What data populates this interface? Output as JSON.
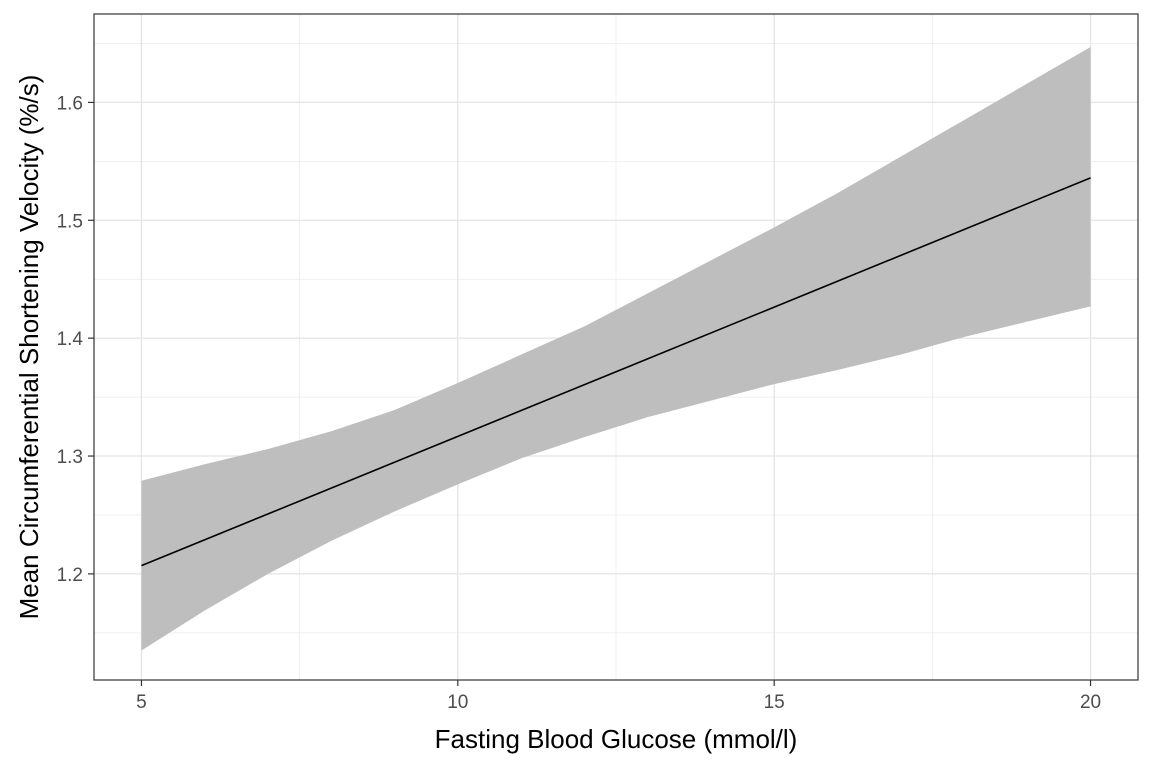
{
  "chart_data": {
    "type": "line",
    "title": "",
    "xlabel": "Fasting Blood Glucose (mmol/l)",
    "ylabel": "Mean Circumferential Shortening Velocity (%/s)",
    "xlim": [
      4.25,
      20.75
    ],
    "ylim": [
      1.11,
      1.675
    ],
    "x_ticks": [
      5,
      10,
      15,
      20
    ],
    "y_ticks": [
      1.2,
      1.3,
      1.4,
      1.5,
      1.6
    ],
    "x_minor_gridlines": [
      7.5,
      12.5,
      17.5
    ],
    "y_minor_gridlines": [
      1.15,
      1.25,
      1.35,
      1.45,
      1.55,
      1.65
    ],
    "grid": true,
    "legend": "none",
    "series": [
      {
        "kind": "fit-line",
        "color": "#000000",
        "x": [
          5,
          20
        ],
        "y": [
          1.207,
          1.536
        ]
      },
      {
        "kind": "confidence-band",
        "color": "#bebebe",
        "x": [
          5,
          6,
          7,
          8,
          9,
          10,
          11,
          12,
          13,
          14,
          15,
          16,
          17,
          18,
          19,
          20
        ],
        "upper": [
          1.279,
          1.293,
          1.306,
          1.321,
          1.339,
          1.362,
          1.386,
          1.41,
          1.438,
          1.466,
          1.494,
          1.523,
          1.554,
          1.585,
          1.616,
          1.647
        ],
        "lower": [
          1.135,
          1.169,
          1.2,
          1.228,
          1.253,
          1.276,
          1.298,
          1.316,
          1.333,
          1.347,
          1.361,
          1.373,
          1.386,
          1.401,
          1.414,
          1.427
        ]
      }
    ]
  }
}
